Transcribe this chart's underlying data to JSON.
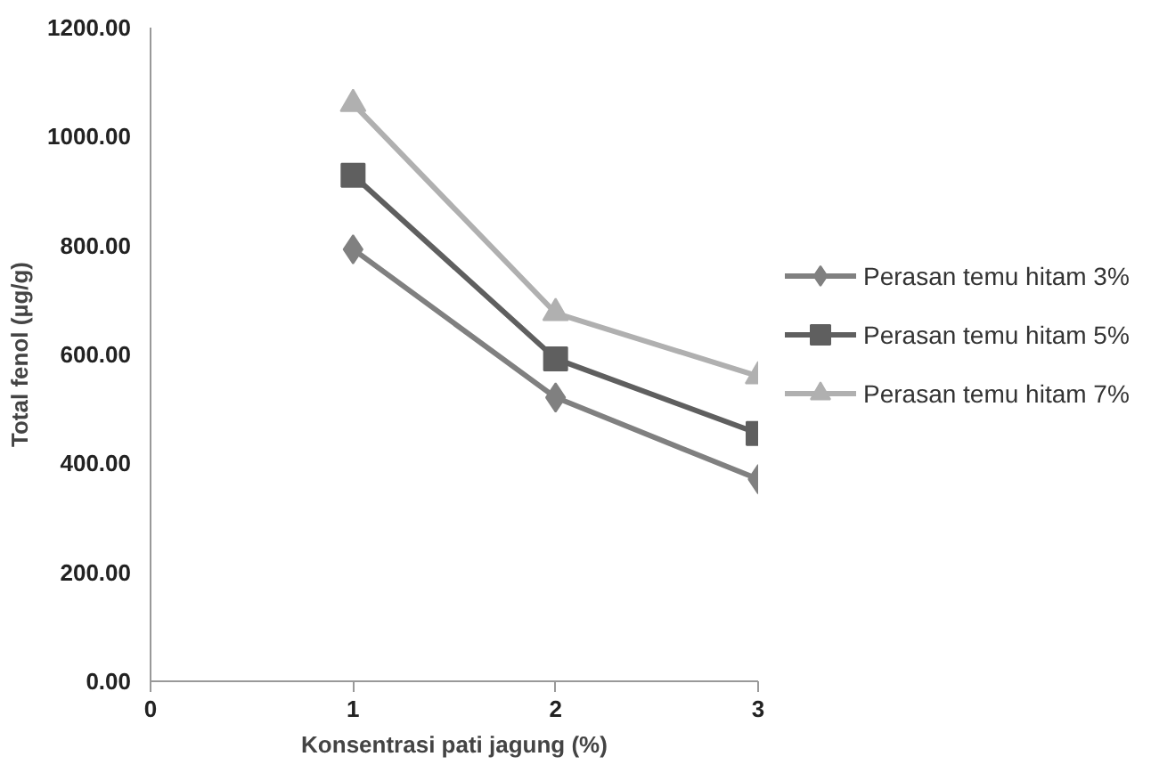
{
  "chart_data": {
    "type": "line",
    "xlabel": "Konsentrasi pati jagung (%)",
    "ylabel": "Total fenol (µg/g)",
    "x": [
      1,
      2,
      3
    ],
    "series": [
      {
        "name": "Perasan temu hitam 3%",
        "color": "#808080",
        "marker": "diamond",
        "values": [
          793,
          521,
          371
        ]
      },
      {
        "name": "Perasan temu hitam 5%",
        "color": "#5f5f5f",
        "marker": "square",
        "values": [
          929,
          592,
          455
        ]
      },
      {
        "name": "Perasan temu hitam 7%",
        "color": "#b0b0b0",
        "marker": "triangle",
        "values": [
          1060,
          676,
          560
        ]
      }
    ],
    "xlim": [
      0,
      3
    ],
    "xticks": [
      0,
      1,
      2,
      3
    ],
    "ylim": [
      0,
      1200
    ],
    "yticks": [
      {
        "value": 0,
        "label": "0.00"
      },
      {
        "value": 200,
        "label": "200.00"
      },
      {
        "value": 400,
        "label": "400.00"
      },
      {
        "value": 600,
        "label": "600.00"
      },
      {
        "value": 800,
        "label": "800.00"
      },
      {
        "value": 1000,
        "label": "1000.00"
      },
      {
        "value": 1200,
        "label": "1200.00"
      }
    ],
    "grid": false,
    "legend": "right",
    "line_style": "solid"
  }
}
